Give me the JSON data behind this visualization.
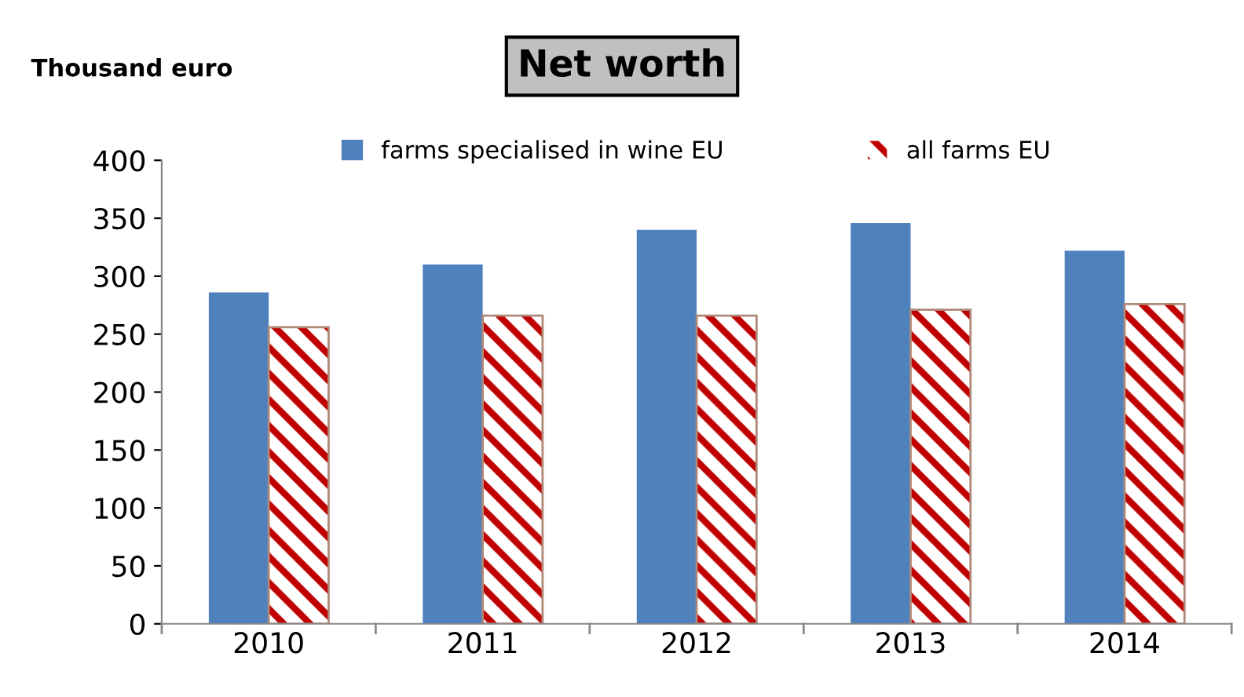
{
  "chart_data": {
    "type": "bar",
    "title": "Net worth",
    "ylabel": "Thousand euro",
    "categories": [
      "2010",
      "2011",
      "2012",
      "2013",
      "2014"
    ],
    "series": [
      {
        "name": "farms specialised in wine EU",
        "color": "#4f81bd",
        "values": [
          286,
          310,
          340,
          346,
          322
        ]
      },
      {
        "name": "all farms EU",
        "color": "#c00000",
        "values": [
          256,
          266,
          266,
          271,
          276
        ]
      }
    ],
    "ylim": [
      0,
      400
    ],
    "yticks": [
      0,
      50,
      100,
      150,
      200,
      250,
      300,
      350,
      400
    ],
    "grid": false,
    "legend": "top"
  }
}
